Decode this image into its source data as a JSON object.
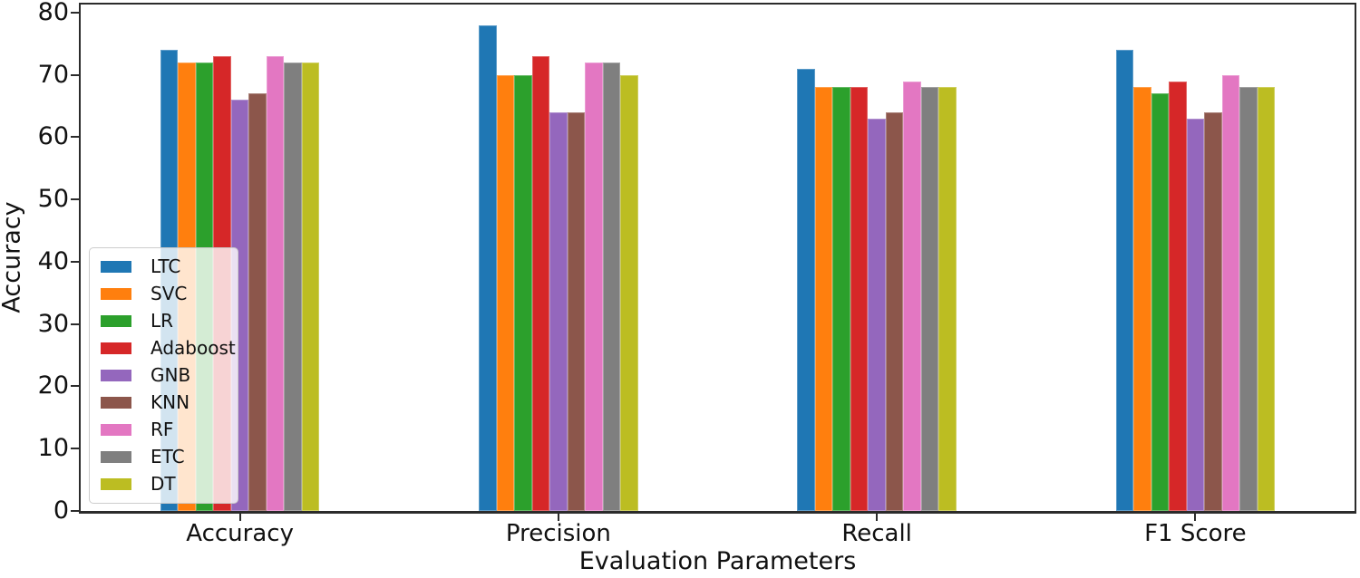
{
  "chart_data": {
    "type": "bar",
    "title": "",
    "xlabel": "Evaluation Parameters",
    "ylabel": "Accuracy",
    "categories": [
      "Accuracy",
      "Precision",
      "Recall",
      "F1 Score"
    ],
    "series": [
      {
        "name": "LTC",
        "color": "#1f77b4",
        "values": [
          74,
          78,
          71,
          74
        ]
      },
      {
        "name": "SVC",
        "color": "#ff7f0e",
        "values": [
          72,
          70,
          68,
          68
        ]
      },
      {
        "name": "LR",
        "color": "#2ca02c",
        "values": [
          72,
          70,
          68,
          67
        ]
      },
      {
        "name": "Adaboost",
        "color": "#d62728",
        "values": [
          73,
          73,
          68,
          69
        ]
      },
      {
        "name": "GNB",
        "color": "#9467bd",
        "values": [
          66,
          64,
          63,
          63
        ]
      },
      {
        "name": "KNN",
        "color": "#8c564b",
        "values": [
          67,
          64,
          64,
          64
        ]
      },
      {
        "name": "RF",
        "color": "#e377c2",
        "values": [
          73,
          72,
          69,
          70
        ]
      },
      {
        "name": "ETC",
        "color": "#7f7f7f",
        "values": [
          72,
          72,
          68,
          68
        ]
      },
      {
        "name": "DT",
        "color": "#bcbd22",
        "values": [
          72,
          70,
          68,
          68
        ]
      }
    ],
    "yticks": [
      0,
      10,
      20,
      30,
      40,
      50,
      60,
      70,
      80
    ],
    "ylim": [
      0,
      81.3
    ],
    "grid": false,
    "legend_position": "lower left",
    "spine_color": "#2b2b2b",
    "background_color": "#ffffff"
  }
}
